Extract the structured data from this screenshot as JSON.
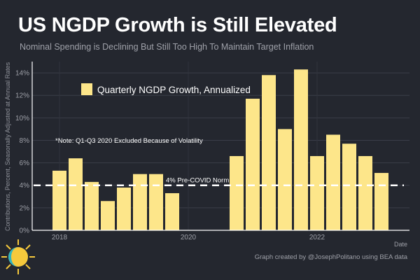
{
  "header": {
    "title": "US NGDP Growth is Still Elevated",
    "subtitle": "Nominal Spending is Declining But Still Too High To Maintain Target Inflation"
  },
  "footer": {
    "credit": "Graph created by @JosephPolitano using BEA data"
  },
  "colors": {
    "background": "#24272f",
    "bar": "#fde68a",
    "text": "#ffffff",
    "muted": "#9ea0a8",
    "reference_line": "#ffffff"
  },
  "chart_data": {
    "type": "bar",
    "title": "US NGDP Growth is Still Elevated",
    "subtitle": "Nominal Spending is Declining But Still Too High To Maintain Target Inflation",
    "xlabel": "Date",
    "ylabel": "Contributions, Percent, Seasonally Adjusted at Annual Rates",
    "categories": [
      "2018 Q1",
      "2018 Q2",
      "2018 Q3",
      "2018 Q4",
      "2019 Q1",
      "2019 Q2",
      "2019 Q3",
      "2019 Q4",
      "2020 Q1",
      "2020 Q2",
      "2020 Q3",
      "2020 Q4",
      "2021 Q1",
      "2021 Q2",
      "2021 Q3",
      "2021 Q4",
      "2022 Q1",
      "2022 Q2",
      "2022 Q3",
      "2022 Q4",
      "2023 Q1"
    ],
    "series": [
      {
        "name": "Quarterly NGDP Growth, Annualized",
        "values": [
          5.3,
          6.4,
          4.3,
          2.6,
          3.8,
          5.0,
          5.0,
          3.3,
          null,
          null,
          null,
          6.6,
          11.7,
          13.8,
          9.0,
          14.3,
          6.6,
          8.5,
          7.7,
          6.6,
          5.1
        ]
      }
    ],
    "x_ticks": [
      "2018",
      "2020",
      "2022"
    ],
    "y_ticks": [
      "0%",
      "2%",
      "4%",
      "6%",
      "8%",
      "10%",
      "12%",
      "14%"
    ],
    "ylim": [
      0,
      15
    ],
    "y_tick_values": [
      0,
      2,
      4,
      6,
      8,
      10,
      12,
      14
    ],
    "reference_line": {
      "value": 4,
      "label": "4% Pre-COVID Norm"
    },
    "annotation": "*Note: Q1-Q3 2020 Excluded Because of Volatility",
    "legend": {
      "label": "Quarterly NGDP Growth, Annualized",
      "position": "top-left"
    },
    "grid": true
  }
}
